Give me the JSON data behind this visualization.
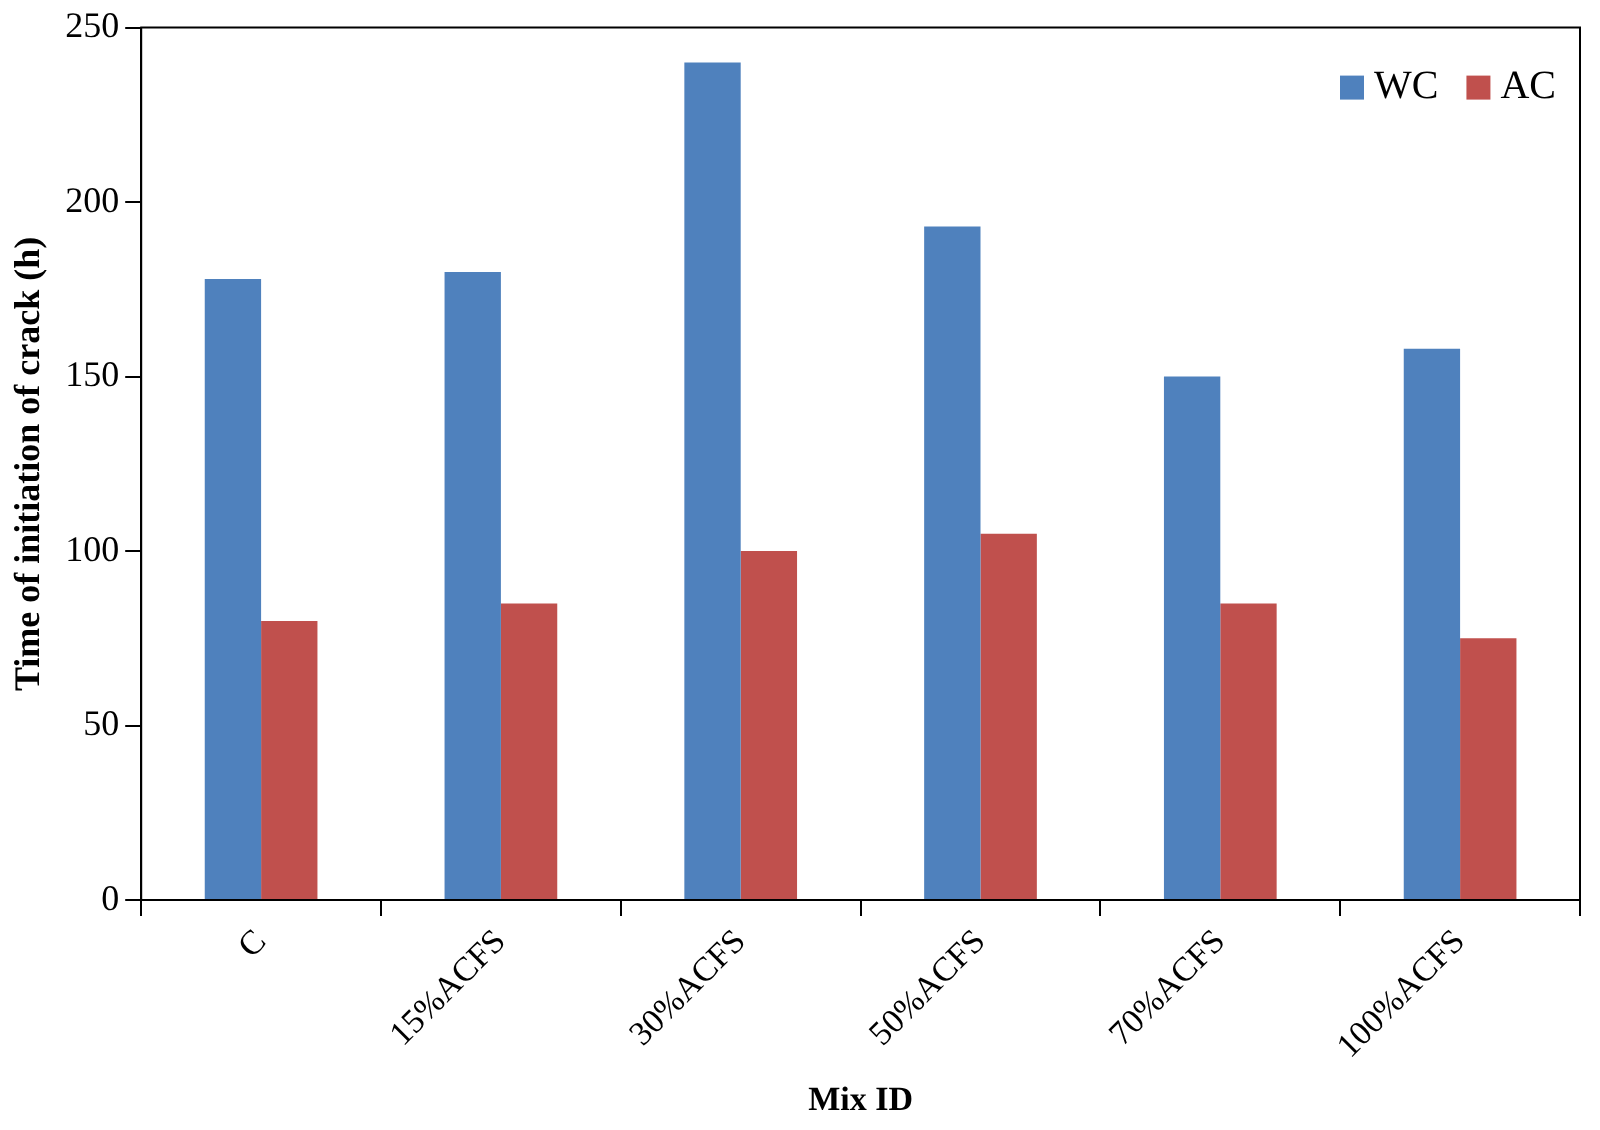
{
  "chart_data": {
    "type": "bar",
    "xlabel": "Mix ID",
    "ylabel": "Time of initiation of crack (h)",
    "categories": [
      "C",
      "15%ACFS",
      "30%ACFS",
      "50%ACFS",
      "70%ACFS",
      "100%ACFS"
    ],
    "series": [
      {
        "name": "WC",
        "color": "#4f81bd",
        "values": [
          178,
          180,
          240,
          193,
          150,
          158
        ]
      },
      {
        "name": "AC",
        "color": "#c0504d",
        "values": [
          80,
          85,
          100,
          105,
          85,
          75
        ]
      }
    ],
    "ylim": [
      0,
      250
    ],
    "yticks": [
      0,
      50,
      100,
      150,
      200,
      250
    ],
    "grid": false,
    "legend": "top right"
  }
}
